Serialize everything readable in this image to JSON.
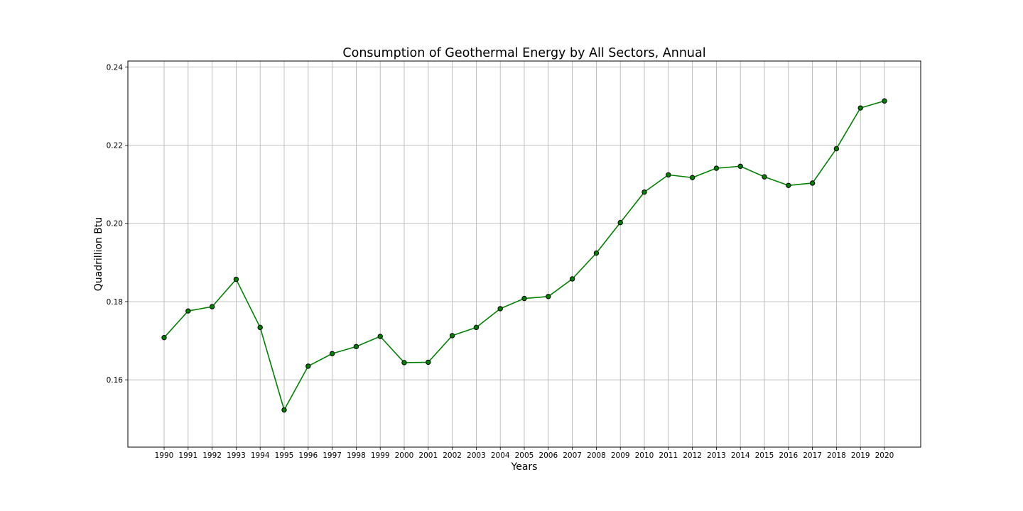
{
  "chart_data": {
    "type": "line",
    "title": "Consumption of Geothermal Energy by All Sectors, Annual",
    "xlabel": "Years",
    "ylabel": "Quadrillion Btu",
    "x": [
      "1990",
      "1991",
      "1992",
      "1993",
      "1994",
      "1995",
      "1996",
      "1997",
      "1998",
      "1999",
      "2000",
      "2001",
      "2002",
      "2003",
      "2004",
      "2005",
      "2006",
      "2007",
      "2008",
      "2009",
      "2010",
      "2011",
      "2012",
      "2013",
      "2014",
      "2015",
      "2016",
      "2017",
      "2018",
      "2019",
      "2020"
    ],
    "y": [
      0.1708,
      0.1776,
      0.1787,
      0.1857,
      0.1734,
      0.1523,
      0.1635,
      0.1667,
      0.1685,
      0.1711,
      0.1644,
      0.1645,
      0.1713,
      0.1734,
      0.1782,
      0.1808,
      0.1813,
      0.1858,
      0.1924,
      0.2002,
      0.208,
      0.2124,
      0.2117,
      0.2141,
      0.2146,
      0.2119,
      0.2097,
      0.2103,
      0.2191,
      0.2295,
      0.2313
    ],
    "yticks": [
      "0.16",
      "0.18",
      "0.20",
      "0.22",
      "0.24"
    ],
    "ylim": [
      0.1428,
      0.2415
    ],
    "grid": true,
    "colors": {
      "line": "#008000",
      "marker_fill": "#008000",
      "marker_edge": "#000000",
      "frame": "#000000",
      "grid": "#b0b0b0"
    }
  }
}
